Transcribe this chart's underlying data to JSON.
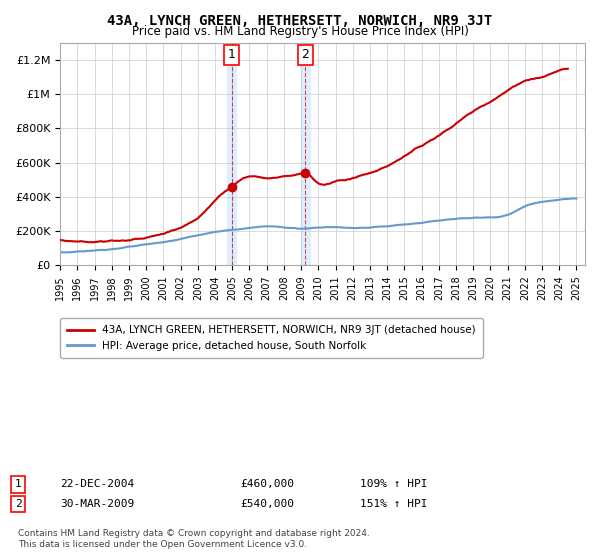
{
  "title": "43A, LYNCH GREEN, HETHERSETT, NORWICH, NR9 3JT",
  "subtitle": "Price paid vs. HM Land Registry's House Price Index (HPI)",
  "legend_line1": "43A, LYNCH GREEN, HETHERSETT, NORWICH, NR9 3JT (detached house)",
  "legend_line2": "HPI: Average price, detached house, South Norfolk",
  "annotation_note": "Contains HM Land Registry data © Crown copyright and database right 2024.\nThis data is licensed under the Open Government Licence v3.0.",
  "sale1_label": "1",
  "sale1_date": "22-DEC-2004",
  "sale1_price": "£460,000",
  "sale1_hpi": "109% ↑ HPI",
  "sale1_x": 2004.97,
  "sale1_y": 460000,
  "sale2_label": "2",
  "sale2_date": "30-MAR-2009",
  "sale2_price": "£540,000",
  "sale2_hpi": "151% ↑ HPI",
  "sale2_x": 2009.24,
  "sale2_y": 540000,
  "hpi_color": "#6699cc",
  "sale_color": "#cc0000",
  "shade_color": "#ddeeff",
  "background_color": "#ffffff",
  "ylim": [
    0,
    1300000
  ],
  "yticks": [
    0,
    200000,
    400000,
    600000,
    800000,
    1000000,
    1200000
  ],
  "xlim": [
    1995,
    2025.5
  ],
  "xticks": [
    1995,
    1996,
    1997,
    1998,
    1999,
    2000,
    2001,
    2002,
    2003,
    2004,
    2005,
    2006,
    2007,
    2008,
    2009,
    2010,
    2011,
    2012,
    2013,
    2014,
    2015,
    2016,
    2017,
    2018,
    2019,
    2020,
    2021,
    2022,
    2023,
    2024,
    2025
  ]
}
